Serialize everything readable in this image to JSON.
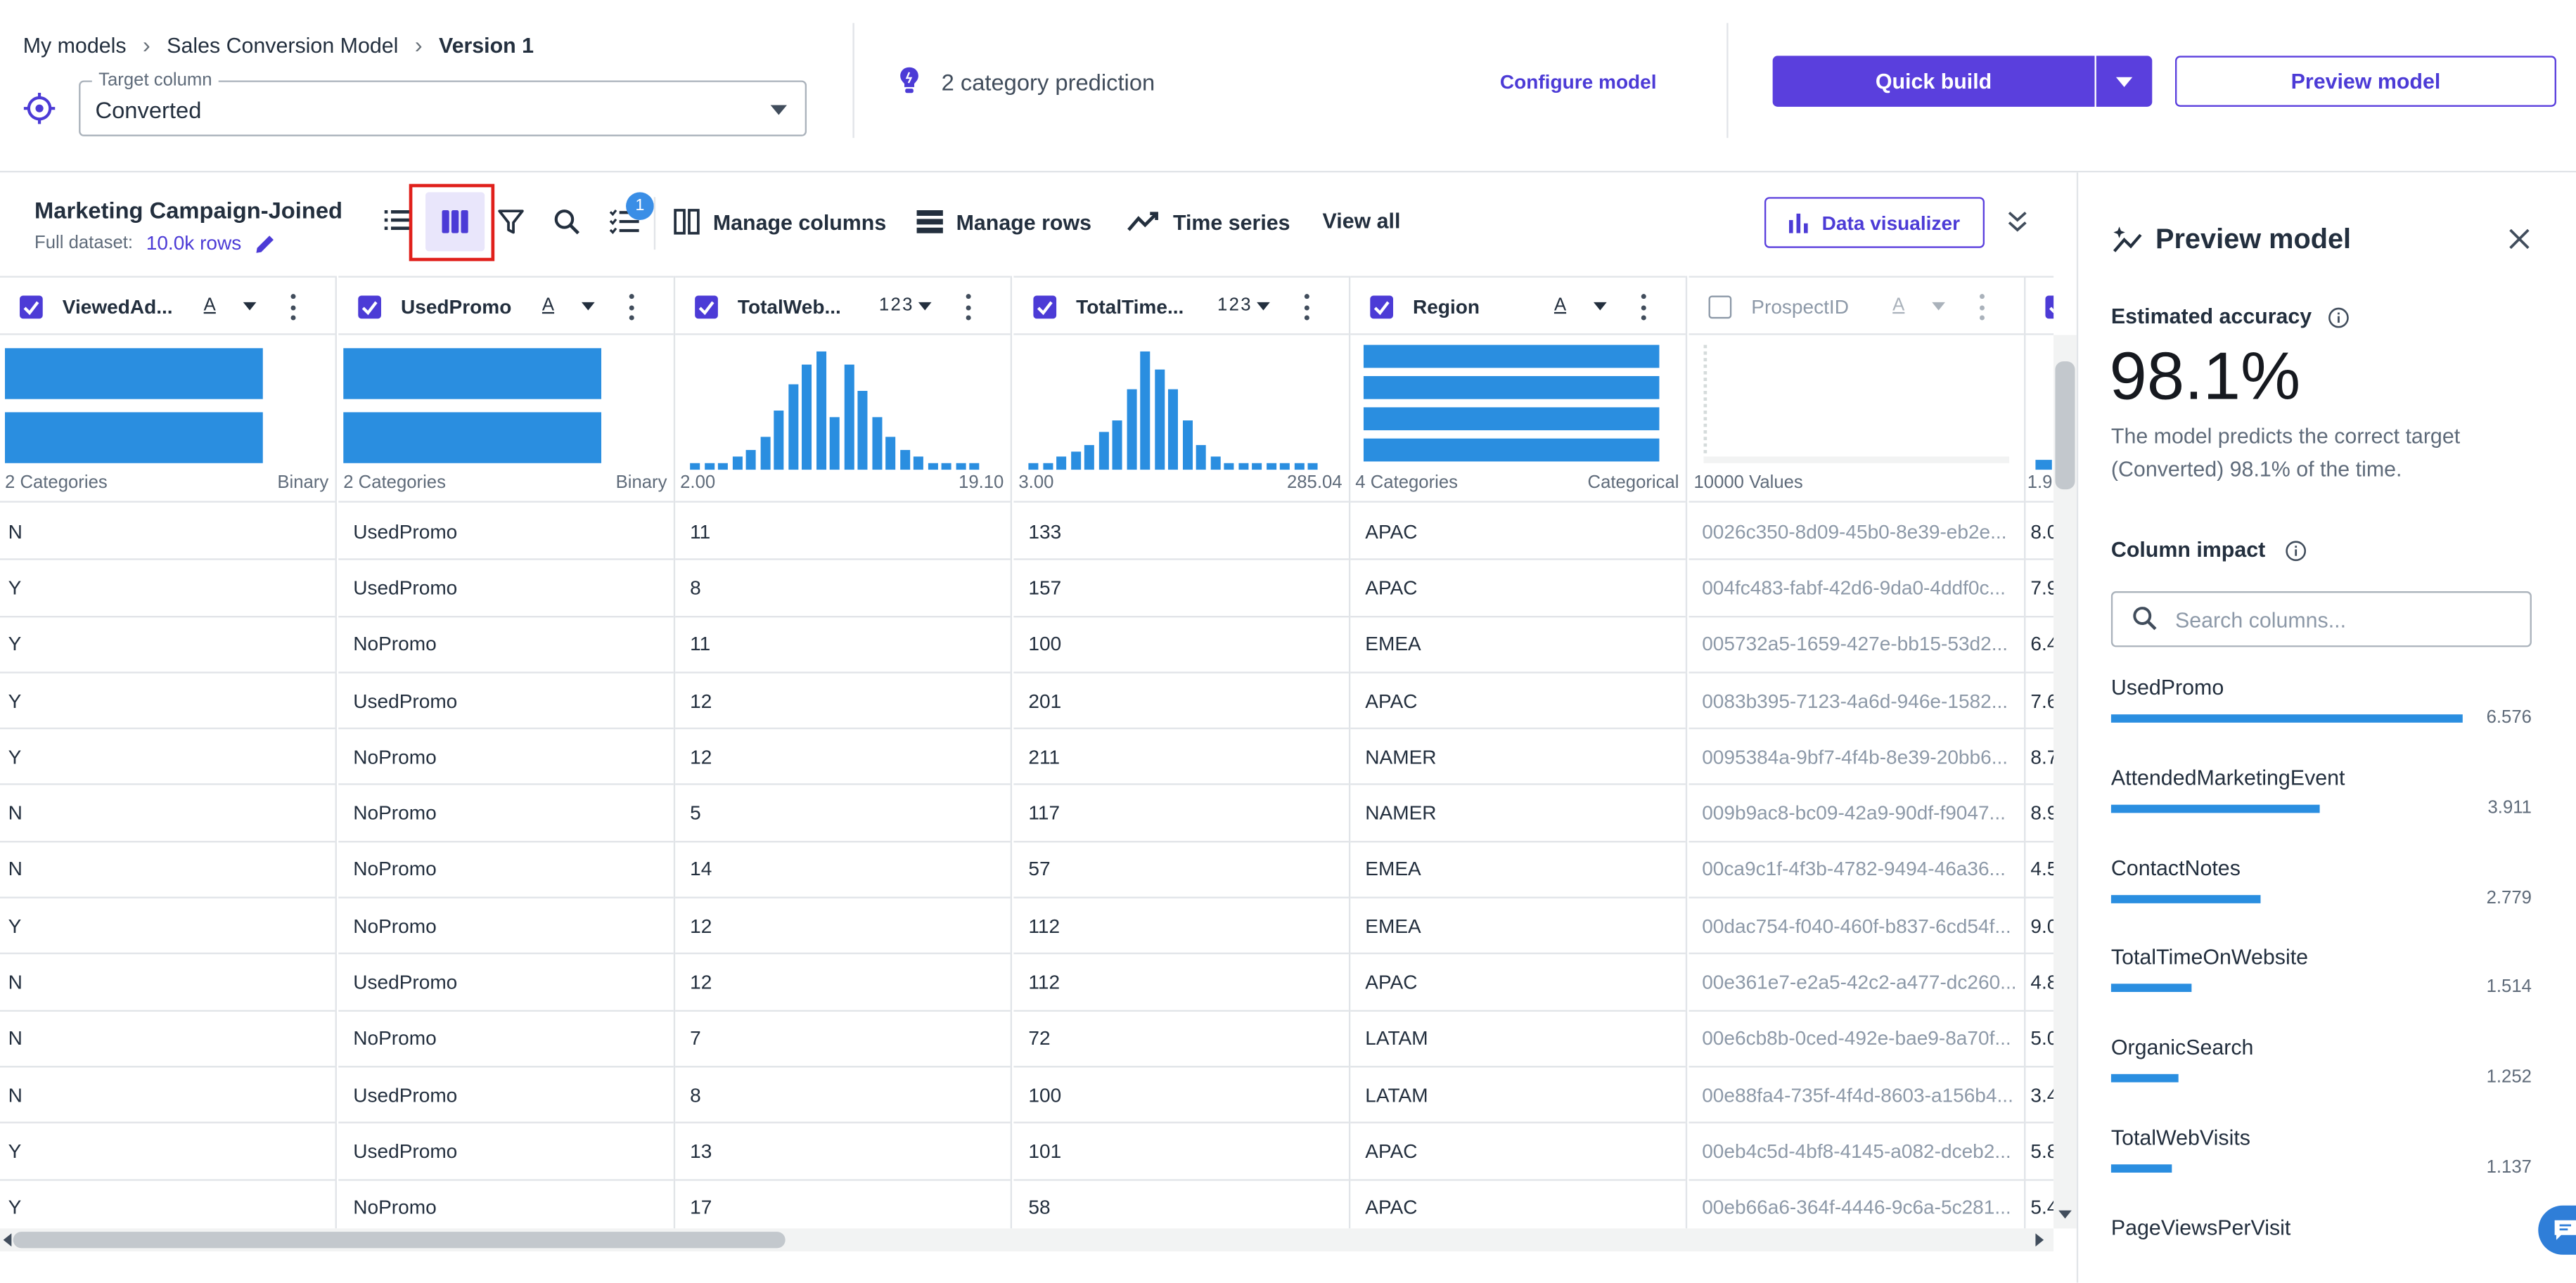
{
  "breadcrumb": {
    "items": [
      "My models",
      "Sales Conversion Model",
      "Version 1"
    ]
  },
  "target": {
    "legend": "Target column",
    "value": "Converted"
  },
  "prediction": {
    "text": "2 category prediction"
  },
  "header_actions": {
    "configure": "Configure model",
    "quick_build": "Quick build",
    "preview": "Preview model"
  },
  "dataset": {
    "name": "Marketing Campaign-Joined",
    "full_label": "Full dataset:",
    "rows": "10.0k rows"
  },
  "toolbar": {
    "badge": "1",
    "manage_columns": "Manage columns",
    "manage_rows": "Manage rows",
    "time_series": "Time series",
    "view_all": "View all",
    "data_visualizer": "Data visualizer"
  },
  "columns": [
    {
      "name": "ViewedAd...",
      "type": "A",
      "checked": true,
      "viz": "binary",
      "left_label": "2 Categories",
      "right_label": "Binary",
      "cells": [
        "N",
        "Y",
        "Y",
        "Y",
        "Y",
        "N",
        "N",
        "Y",
        "N",
        "N",
        "N",
        "Y",
        "Y"
      ]
    },
    {
      "name": "UsedPromo",
      "type": "A",
      "checked": true,
      "viz": "binary",
      "left_label": "2 Categories",
      "right_label": "Binary",
      "cells": [
        "UsedPromo",
        "UsedPromo",
        "NoPromo",
        "UsedPromo",
        "NoPromo",
        "NoPromo",
        "NoPromo",
        "NoPromo",
        "UsedPromo",
        "NoPromo",
        "UsedPromo",
        "UsedPromo",
        "NoPromo"
      ]
    },
    {
      "name": "TotalWeb...",
      "type": "123",
      "checked": true,
      "viz": "hist",
      "left_label": "2.00",
      "right_label": "19.10",
      "hist": [
        1,
        1,
        1,
        2,
        3,
        5,
        9,
        13,
        16,
        18,
        8,
        16,
        12,
        8,
        5,
        3,
        2,
        1,
        1,
        1,
        1
      ],
      "cells": [
        "11",
        "8",
        "11",
        "12",
        "12",
        "5",
        "14",
        "12",
        "12",
        "7",
        "8",
        "13",
        "17"
      ]
    },
    {
      "name": "TotalTime...",
      "type": "123",
      "checked": true,
      "viz": "hist",
      "left_label": "3.00",
      "right_label": "285.04",
      "hist": [
        1,
        1,
        2,
        3,
        4,
        6,
        8,
        13,
        19,
        16,
        13,
        8,
        4,
        2,
        1,
        1,
        1,
        1,
        1,
        1,
        1
      ],
      "cells": [
        "133",
        "157",
        "100",
        "201",
        "211",
        "117",
        "57",
        "112",
        "112",
        "72",
        "100",
        "101",
        "58"
      ]
    },
    {
      "name": "Region",
      "type": "A",
      "checked": true,
      "viz": "categorical",
      "left_label": "4 Categories",
      "right_label": "Categorical",
      "cells": [
        "APAC",
        "APAC",
        "EMEA",
        "APAC",
        "NAMER",
        "NAMER",
        "EMEA",
        "EMEA",
        "APAC",
        "LATAM",
        "LATAM",
        "APAC",
        "APAC"
      ]
    },
    {
      "name": "ProspectID",
      "type": "A",
      "checked": false,
      "viz": "ids",
      "left_label": "10000 Values",
      "right_label": "",
      "cells": [
        "0026c350-8d09-45b0-8e39-eb2e...",
        "004fc483-fabf-42d6-9da0-4ddf0c...",
        "005732a5-1659-427e-bb15-53d2...",
        "0083b395-7123-4a6d-946e-1582...",
        "0095384a-9bf7-4f4b-8e39-20bb6...",
        "009b9ac8-bc09-42a9-90df-f9047...",
        "00ca9c1f-4f3b-4782-9494-46a36...",
        "00dac754-f040-460f-b837-6cd54f...",
        "00e361e7-e2a5-42c2-a477-dc260...",
        "00e6cb8b-0ced-492e-bae9-8a70f...",
        "00e88fa4-735f-4f4d-8603-a156b4...",
        "00eb4c5d-4bf8-4145-a082-dceb2...",
        "00eb66a6-364f-4446-9c6a-5c281..."
      ]
    },
    {
      "name": "",
      "type": "",
      "checked": true,
      "viz": "partial",
      "left_label": "1.9",
      "right_label": "",
      "cells": [
        "8.0",
        "7.9",
        "6.4",
        "7.6",
        "8.7",
        "8.9",
        "4.5",
        "9.0",
        "4.8",
        "5.0",
        "3.4",
        "5.8",
        "5.4"
      ]
    }
  ],
  "panel": {
    "title": "Preview model",
    "accuracy_label": "Estimated accuracy",
    "accuracy_value": "98.1%",
    "accuracy_desc": "The model predicts the correct target (Converted) 98.1% of the time.",
    "impact_label": "Column impact",
    "search_placeholder": "Search columns...",
    "impacts": [
      {
        "name": "UsedPromo",
        "value": "6.576",
        "fraction": 1.0
      },
      {
        "name": "AttendedMarketingEvent",
        "value": "3.911",
        "fraction": 0.595
      },
      {
        "name": "ContactNotes",
        "value": "2.779",
        "fraction": 0.423
      },
      {
        "name": "TotalTimeOnWebsite",
        "value": "1.514",
        "fraction": 0.23
      },
      {
        "name": "OrganicSearch",
        "value": "1.252",
        "fraction": 0.19
      },
      {
        "name": "TotalWebVisits",
        "value": "1.137",
        "fraction": 0.173
      },
      {
        "name": "PageViewsPerVisit",
        "value": "",
        "fraction": 0
      }
    ]
  },
  "colors": {
    "accent": "#5a3fdd",
    "bar": "#2a8ee0",
    "highlight": "#e0201b"
  }
}
